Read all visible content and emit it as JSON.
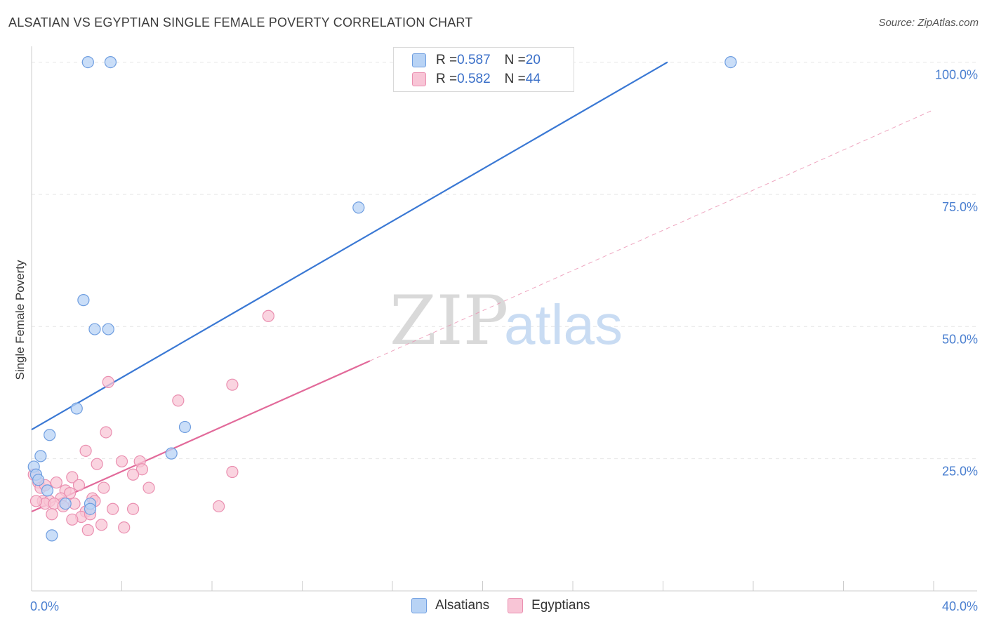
{
  "title": "ALSATIAN VS EGYPTIAN SINGLE FEMALE POVERTY CORRELATION CHART",
  "source": "Source: ZipAtlas.com",
  "colors": {
    "blue": "#3a78d4",
    "blue_fill": "#b8d3f5",
    "blue_stroke": "#6f9ee0",
    "pink": "#e26a9a",
    "pink_fill": "#f8c5d6",
    "pink_stroke": "#ea8fb0",
    "accent_text": "#3a6fc8"
  },
  "legend": {
    "rows": [
      {
        "r_label": "R = ",
        "r_value": "0.587",
        "n_label": "N = ",
        "n_value": "20"
      },
      {
        "r_label": "R = ",
        "r_value": "0.582",
        "n_label": "N = ",
        "n_value": "44"
      }
    ]
  },
  "bottom_legend": [
    "Alsatians",
    "Egyptians"
  ],
  "watermark": {
    "zip": "ZIP",
    "atlas": "atlas"
  },
  "chart_data": {
    "type": "scatter",
    "xlabel": "",
    "ylabel": "Single Female Poverty",
    "xlim": [
      0,
      40
    ],
    "ylim": [
      0,
      103
    ],
    "x_tick_labels": [
      "0.0%",
      "40.0%"
    ],
    "y_ticks": [
      25,
      50,
      75,
      100
    ],
    "y_tick_labels": [
      "25.0%",
      "50.0%",
      "75.0%",
      "100.0%"
    ],
    "grid": true,
    "series": [
      {
        "name": "Alsatians",
        "r": 0.587,
        "n": 20,
        "points": [
          [
            2.5,
            100
          ],
          [
            3.5,
            100
          ],
          [
            31,
            100
          ],
          [
            14.5,
            72.5
          ],
          [
            2.3,
            55
          ],
          [
            2.8,
            49.5
          ],
          [
            3.4,
            49.5
          ],
          [
            2.0,
            34.5
          ],
          [
            6.8,
            31
          ],
          [
            0.8,
            29.5
          ],
          [
            0.4,
            25.5
          ],
          [
            6.2,
            26
          ],
          [
            0.1,
            23.5
          ],
          [
            0.2,
            22
          ],
          [
            0.7,
            19
          ],
          [
            1.5,
            16.5
          ],
          [
            2.6,
            16.5
          ],
          [
            2.6,
            15.5
          ],
          [
            0.9,
            10.5
          ],
          [
            0.3,
            21
          ]
        ],
        "trend": {
          "x": [
            0,
            28.2
          ],
          "y": [
            30.5,
            100
          ],
          "dashed_extension": false
        }
      },
      {
        "name": "Egyptians",
        "r": 0.582,
        "n": 44,
        "points": [
          [
            10.5,
            52
          ],
          [
            3.4,
            39.5
          ],
          [
            8.9,
            39
          ],
          [
            6.5,
            36
          ],
          [
            3.3,
            30
          ],
          [
            2.4,
            26.5
          ],
          [
            2.9,
            24
          ],
          [
            4.8,
            24.5
          ],
          [
            4.0,
            24.5
          ],
          [
            4.9,
            23
          ],
          [
            8.9,
            22.5
          ],
          [
            4.5,
            22
          ],
          [
            0.1,
            22
          ],
          [
            0.3,
            20.5
          ],
          [
            1.8,
            21.5
          ],
          [
            1.1,
            20.5
          ],
          [
            2.1,
            20
          ],
          [
            5.2,
            19.5
          ],
          [
            3.2,
            19.5
          ],
          [
            1.5,
            19
          ],
          [
            0.4,
            19.5
          ],
          [
            1.7,
            18.5
          ],
          [
            0.5,
            17
          ],
          [
            0.8,
            17
          ],
          [
            1.3,
            17.5
          ],
          [
            2.7,
            17.5
          ],
          [
            2.8,
            17
          ],
          [
            0.6,
            16.5
          ],
          [
            1.0,
            16.5
          ],
          [
            1.4,
            16
          ],
          [
            2.4,
            15
          ],
          [
            3.6,
            15.5
          ],
          [
            4.5,
            15.5
          ],
          [
            8.3,
            16
          ],
          [
            0.9,
            14.5
          ],
          [
            2.2,
            14
          ],
          [
            2.6,
            14.5
          ],
          [
            1.8,
            13.5
          ],
          [
            3.1,
            12.5
          ],
          [
            4.1,
            12
          ],
          [
            2.5,
            11.5
          ],
          [
            0.2,
            17
          ],
          [
            1.9,
            16.5
          ],
          [
            0.6,
            20
          ]
        ],
        "trend": {
          "x": [
            0,
            15.0
          ],
          "y": [
            15.0,
            43.5
          ],
          "dashed_extension": true,
          "dashed_to": [
            40,
            91
          ]
        }
      }
    ]
  }
}
